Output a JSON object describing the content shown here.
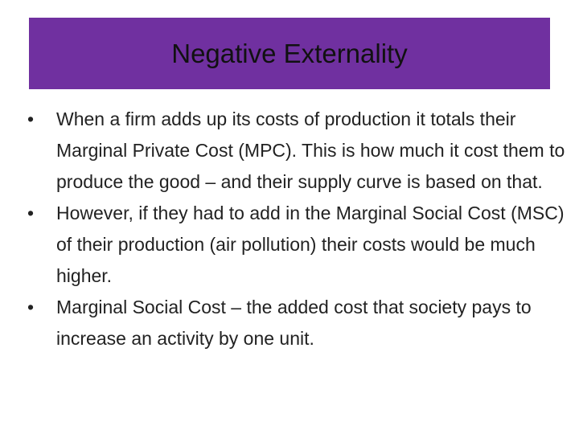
{
  "header": {
    "title": "Negative Externality"
  },
  "bullets": [
    "When a firm adds up its costs of production it totals their Marginal Private Cost (MPC). This is how much it cost them to produce the good – and their supply curve is based on that.",
    "However, if they had to add in the Marginal Social Cost (MSC) of their production (air pollution) their costs would be much higher.",
    "Marginal Social Cost – the added cost that society pays to increase an activity by one unit."
  ]
}
